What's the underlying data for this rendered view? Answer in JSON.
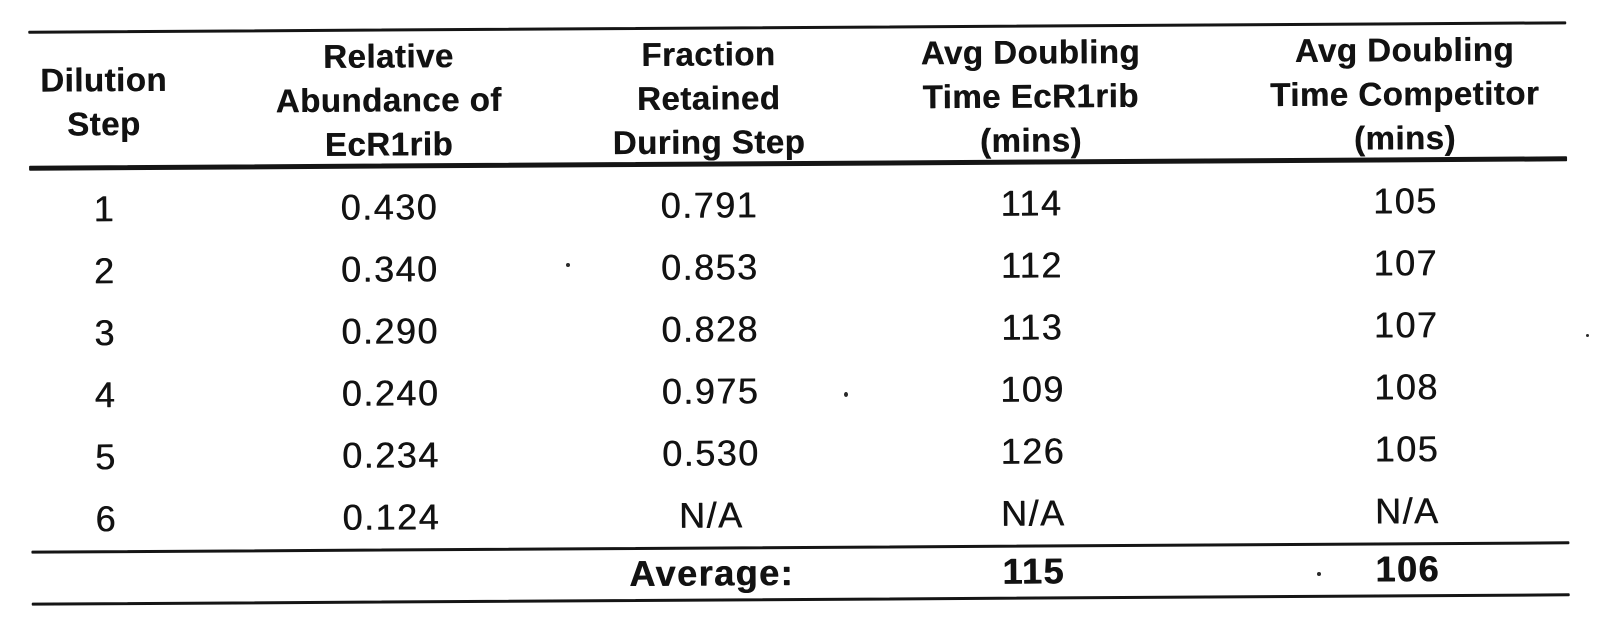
{
  "document": {
    "kind": "scanned-table",
    "colors": {
      "ink": "#121212",
      "paper": "#ffffff"
    }
  },
  "table": {
    "columns": [
      {
        "id": "dilution-step",
        "label": "Dilution Step",
        "lines": [
          "Dilution",
          "Step"
        ]
      },
      {
        "id": "relative-abundance",
        "label": "Relative Abundance of EcR1rib",
        "lines": [
          "Relative",
          "Abundance of",
          "EcR1rib"
        ]
      },
      {
        "id": "fraction-retained",
        "label": "Fraction Retained During Step",
        "lines": [
          "Fraction",
          "Retained",
          "During Step"
        ]
      },
      {
        "id": "doubling-ecr1rib",
        "label": "Avg Doubling Time EcR1rib (mins)",
        "lines": [
          "Avg Doubling",
          "Time EcR1rib",
          "(mins)"
        ]
      },
      {
        "id": "doubling-competitor",
        "label": "Avg Doubling Time Competitor (mins)",
        "lines": [
          "Avg Doubling",
          "Time Competitor",
          "(mins)"
        ]
      }
    ],
    "rows": [
      {
        "cells": [
          "1",
          "0.430",
          "0.791",
          "114",
          "105"
        ]
      },
      {
        "cells": [
          "2",
          "0.340",
          "0.853",
          "112",
          "107"
        ]
      },
      {
        "cells": [
          "3",
          "0.290",
          "0.828",
          "113",
          "107"
        ]
      },
      {
        "cells": [
          "4",
          "0.240",
          "0.975",
          "109",
          "108"
        ]
      },
      {
        "cells": [
          "5",
          "0.234",
          "0.530",
          "126",
          "105"
        ]
      },
      {
        "cells": [
          "6",
          "0.124",
          "N/A",
          "N/A",
          "N/A"
        ]
      }
    ],
    "summary": {
      "label": "Average:",
      "avg_doubling_ecr1rib": "115",
      "avg_doubling_competitor": "106"
    }
  }
}
